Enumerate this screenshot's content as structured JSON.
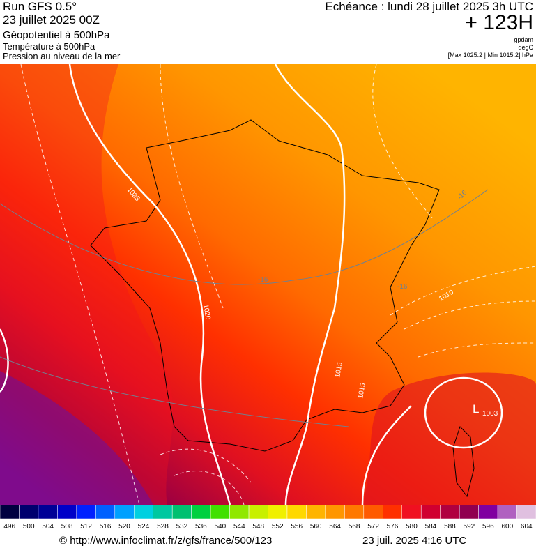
{
  "header": {
    "run": "Run GFS 0.5°",
    "run_date": "23 juillet 2025 00Z",
    "field1": "Géopotentiel à 500hPa",
    "field2": "Température à 500hPa",
    "field3": "Pression au niveau de la mer",
    "valid": "Echéance : lundi 28 juillet 2025 3h UTC",
    "lead": "+ 123H",
    "unit1": "gpdam",
    "unit2": "degC",
    "pressure_range": "[Max 1025.2 | Min 1015.2] hPa"
  },
  "map_labels": [
    "1025",
    "1020",
    "1015",
    "1015",
    "1010",
    "L",
    "1003",
    "-16",
    "-16",
    "-16"
  ],
  "colorbar": {
    "labels": [
      496,
      500,
      504,
      508,
      512,
      516,
      520,
      524,
      528,
      532,
      536,
      540,
      544,
      548,
      552,
      556,
      560,
      564,
      568,
      572,
      576,
      580,
      584,
      588,
      592,
      596,
      600,
      604
    ],
    "colors": [
      "#000040",
      "#00006e",
      "#000096",
      "#0000c8",
      "#0020ff",
      "#0060ff",
      "#00a0ff",
      "#00d0e0",
      "#00c8a0",
      "#00c070",
      "#00d040",
      "#40e000",
      "#90e800",
      "#c8f000",
      "#f0f000",
      "#ffd800",
      "#ffb400",
      "#ff9600",
      "#ff7800",
      "#ff5a00",
      "#ff3000",
      "#f01020",
      "#d00030",
      "#b00040",
      "#900050",
      "#8000a0",
      "#b060c0",
      "#e0c0e0"
    ]
  },
  "footer": {
    "source": "© http://www.infoclimat.fr/z/gfs/france/500/123",
    "timestamp": "23 juil. 2025  4:16 UTC"
  }
}
